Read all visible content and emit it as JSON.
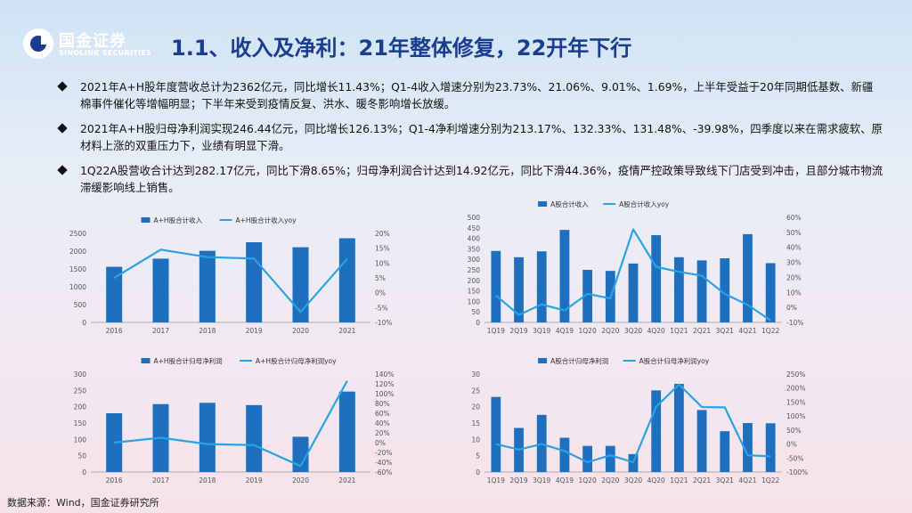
{
  "header": {
    "logo_cn": "国金证券",
    "logo_en": "SINOLINK SECURITIES",
    "title": "1.1、收入及净利：21年整体修复，22开年下行"
  },
  "bullets": [
    "2021年A+H股年度营收总计为2362亿元，同比增长11.43%；Q1-4收入增速分别为23.73%、21.06%、9.01%、1.69%，上半年受益于20年同期低基数、新疆棉事件催化等增幅明显；下半年来受到疫情反复、洪水、暖冬影响增长放缓。",
    "2021年A+H股归母净利润实现246.44亿元，同比增长126.13%；Q1-4净利增速分别为213.17%、132.33%、131.48%、-39.98%，四季度以来在需求疲软、原材料上涨的双重压力下，业绩有明显下滑。",
    "1Q22A股营收合计达到282.17亿元，同比下滑8.65%；归母净利润合计达到14.92亿元，同比下滑44.36%，疫情严控政策导致线下门店受到冲击，且部分城市物流滞缓影响线上销售。"
  ],
  "source": "数据来源：Wind，国金证券研究所",
  "colors": {
    "bar": "#1f6fbf",
    "line": "#29a3e6",
    "title": "#1a3d8f"
  },
  "chart_data": [
    {
      "type": "bar",
      "categories": [
        "2016",
        "2017",
        "2018",
        "2019",
        "2020",
        "2021"
      ],
      "series": [
        {
          "name": "A+H股合计收入",
          "type": "bar",
          "axis": "left",
          "values": [
            1560,
            1790,
            2010,
            2250,
            2110,
            2362
          ]
        },
        {
          "name": "A+H股合计收入yoy",
          "type": "line",
          "axis": "right",
          "values": [
            5,
            14.5,
            12,
            11.5,
            -6.5,
            11.43
          ]
        }
      ],
      "ylim": [
        0,
        2500
      ],
      "yticks": [
        0,
        500,
        1000,
        1500,
        2000,
        2500
      ],
      "y2lim": [
        -10,
        20
      ],
      "y2ticks": [
        -10,
        -5,
        0,
        5,
        10,
        15,
        20
      ],
      "y2_format": "percent",
      "legend": "top"
    },
    {
      "type": "bar",
      "categories": [
        "1Q19",
        "2Q19",
        "3Q19",
        "4Q19",
        "1Q20",
        "2Q20",
        "3Q20",
        "4Q20",
        "1Q21",
        "2Q21",
        "3Q21",
        "4Q21",
        "1Q22"
      ],
      "series": [
        {
          "name": "A股合计收入",
          "type": "bar",
          "axis": "left",
          "values": [
            340,
            310,
            338,
            440,
            250,
            245,
            280,
            415,
            310,
            295,
            305,
            420,
            282
          ]
        },
        {
          "name": "A股合计收入yoy",
          "type": "line",
          "axis": "right",
          "values": [
            8,
            -5,
            2,
            -2,
            9,
            6,
            52,
            27,
            23.7,
            21.1,
            9.0,
            1.7,
            -8.65
          ]
        }
      ],
      "ylim": [
        0,
        500
      ],
      "yticks": [
        0,
        50,
        100,
        150,
        200,
        250,
        300,
        350,
        400,
        450,
        500
      ],
      "y2lim": [
        -10,
        60
      ],
      "y2ticks": [
        -10,
        0,
        10,
        20,
        30,
        40,
        50,
        60
      ],
      "y2_format": "percent",
      "legend": "top"
    },
    {
      "type": "bar",
      "categories": [
        "2016",
        "2017",
        "2018",
        "2019",
        "2020",
        "2021"
      ],
      "series": [
        {
          "name": "A+H股合计归母净利润",
          "type": "bar",
          "axis": "left",
          "values": [
            180,
            208,
            212,
            205,
            108,
            246.44
          ]
        },
        {
          "name": "A+H股合计归母净利润yoy",
          "type": "line",
          "axis": "right",
          "values": [
            0,
            10,
            -3,
            -5,
            -48,
            126.13
          ]
        }
      ],
      "ylim": [
        0,
        300
      ],
      "yticks": [
        0,
        50,
        100,
        150,
        200,
        250,
        300
      ],
      "y2lim": [
        -60,
        140
      ],
      "y2ticks": [
        -60,
        -40,
        -20,
        0,
        20,
        40,
        60,
        80,
        100,
        120,
        140
      ],
      "y2_format": "percent",
      "legend": "top"
    },
    {
      "type": "bar",
      "categories": [
        "1Q19",
        "2Q19",
        "3Q19",
        "4Q19",
        "1Q20",
        "2Q20",
        "3Q20",
        "4Q20",
        "1Q21",
        "2Q21",
        "3Q21",
        "4Q21",
        "1Q22"
      ],
      "series": [
        {
          "name": "A股合计归母净利润",
          "type": "bar",
          "axis": "left",
          "values": [
            23,
            13.5,
            17.5,
            10.5,
            8,
            8,
            5.5,
            25,
            27,
            19,
            12.5,
            15,
            14.92
          ]
        },
        {
          "name": "A股合计归母净利润yoy",
          "type": "line",
          "axis": "right",
          "values": [
            0,
            -20,
            0,
            -25,
            -65,
            -40,
            -65,
            133,
            213,
            132,
            131,
            -40,
            -44
          ]
        }
      ],
      "ylim": [
        0,
        30
      ],
      "yticks": [
        0,
        5,
        10,
        15,
        20,
        25,
        30
      ],
      "y2lim": [
        -100,
        250
      ],
      "y2ticks": [
        -100,
        -50,
        0,
        50,
        100,
        150,
        200,
        250
      ],
      "y2_format": "percent",
      "legend": "top"
    }
  ]
}
